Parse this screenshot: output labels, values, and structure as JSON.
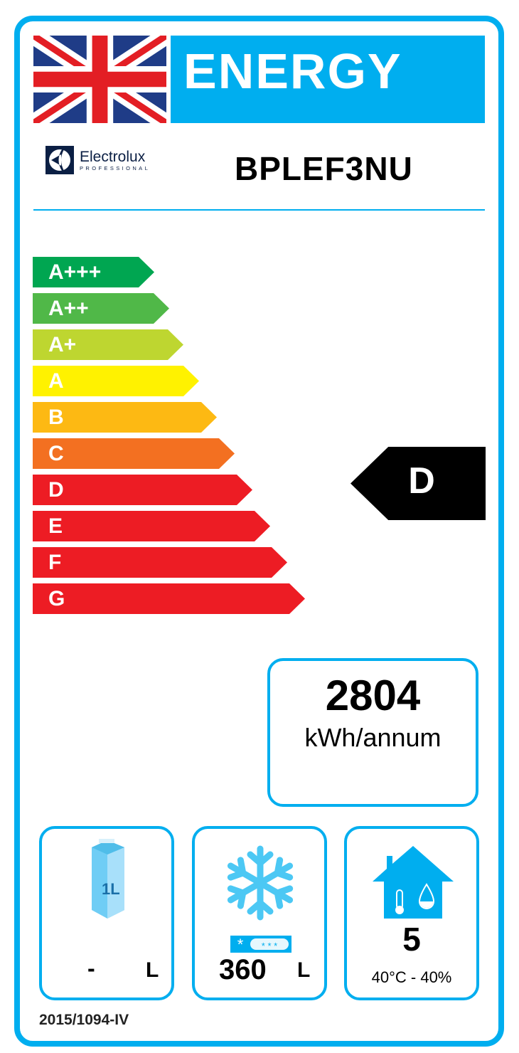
{
  "header": {
    "title": "ENERGY",
    "brand": "Electrolux",
    "brand_sub": "PROFESSIONAL",
    "model": "BPLEF3NU"
  },
  "scale": [
    {
      "label": "A+++",
      "color": "#00a651"
    },
    {
      "label": "A++",
      "color": "#50b848"
    },
    {
      "label": "A+",
      "color": "#bed630"
    },
    {
      "label": "A",
      "color": "#fff200"
    },
    {
      "label": "B",
      "color": "#fdb913"
    },
    {
      "label": "C",
      "color": "#f37021"
    },
    {
      "label": "D",
      "color": "#ed1c24"
    },
    {
      "label": "E",
      "color": "#ed1c24"
    },
    {
      "label": "F",
      "color": "#ed1c24"
    },
    {
      "label": "G",
      "color": "#ed1c24"
    }
  ],
  "rating": "D",
  "consumption": {
    "value": "2804",
    "unit": "kWh/annum"
  },
  "chilled": {
    "icon": "carton-icon",
    "carton_label": "1L",
    "value": "-",
    "unit": "L"
  },
  "frozen": {
    "icon": "snowflake-icon",
    "value": "360",
    "unit": "L"
  },
  "climate": {
    "icon": "house-icon",
    "value": "5",
    "condition": "40°C - 40%"
  },
  "regulation": "2015/1094-IV",
  "accent": "#00aeef"
}
